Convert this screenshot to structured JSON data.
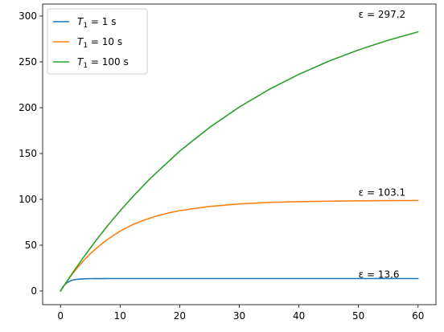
{
  "chart_data": {
    "type": "line",
    "title": "",
    "xlabel": "",
    "ylabel": "",
    "xlim": [
      -3,
      63
    ],
    "ylim": [
      -14.9,
      313.1
    ],
    "xticks": [
      0,
      10,
      20,
      30,
      40,
      50,
      60
    ],
    "yticks": [
      0,
      50,
      100,
      150,
      200,
      250,
      300
    ],
    "grid": false,
    "legend_position": "top-left",
    "series": [
      {
        "name": "T1 = 1 s",
        "name_main": "T",
        "name_sub": "1",
        "name_rest": " = 1 s",
        "color": "#1f77b4",
        "x": [
          0,
          0.25,
          0.5,
          0.75,
          1,
          1.5,
          2,
          2.5,
          3,
          4,
          5,
          6,
          8,
          10,
          15,
          20,
          30,
          40,
          50,
          60
        ],
        "y": [
          0,
          3.0,
          5.4,
          7.2,
          8.6,
          10.6,
          11.8,
          12.5,
          12.9,
          13.3,
          13.5,
          13.55,
          13.6,
          13.6,
          13.6,
          13.6,
          13.6,
          13.6,
          13.6,
          13.6
        ],
        "annotation": "ε = 13.6",
        "annotation_value": 13.6
      },
      {
        "name": "T1 = 10 s",
        "name_main": "T",
        "name_sub": "1",
        "name_rest": " = 10 s",
        "color": "#ff7f0e",
        "x": [
          0,
          1,
          2,
          3,
          4,
          5,
          6,
          7,
          8,
          10,
          12,
          14,
          16,
          18,
          20,
          25,
          30,
          35,
          40,
          45,
          50,
          55,
          60
        ],
        "y": [
          0,
          9.8,
          18.7,
          26.7,
          34.0,
          40.6,
          46.5,
          51.9,
          56.8,
          65.3,
          72.1,
          77.3,
          81.6,
          85.0,
          87.7,
          92.3,
          95.0,
          96.6,
          97.5,
          98.0,
          98.4,
          98.6,
          98.7
        ],
        "annotation": "ε = 103.1",
        "annotation_value": 103.1
      },
      {
        "name": "T1 = 100 s",
        "name_main": "T",
        "name_sub": "1",
        "name_rest": " = 100 s",
        "color": "#2ca02c",
        "x": [
          0,
          2,
          4,
          6,
          8,
          10,
          12,
          15,
          20,
          25,
          30,
          35,
          40,
          45,
          50,
          55,
          60
        ],
        "y": [
          0,
          19.6,
          38.0,
          55.5,
          72.0,
          87.4,
          102.0,
          122.4,
          152.6,
          178.4,
          200.7,
          219.9,
          236.4,
          250.7,
          263.0,
          273.6,
          282.7
        ],
        "annotation": "ε = 297.2",
        "annotation_value": 297.2
      }
    ]
  }
}
